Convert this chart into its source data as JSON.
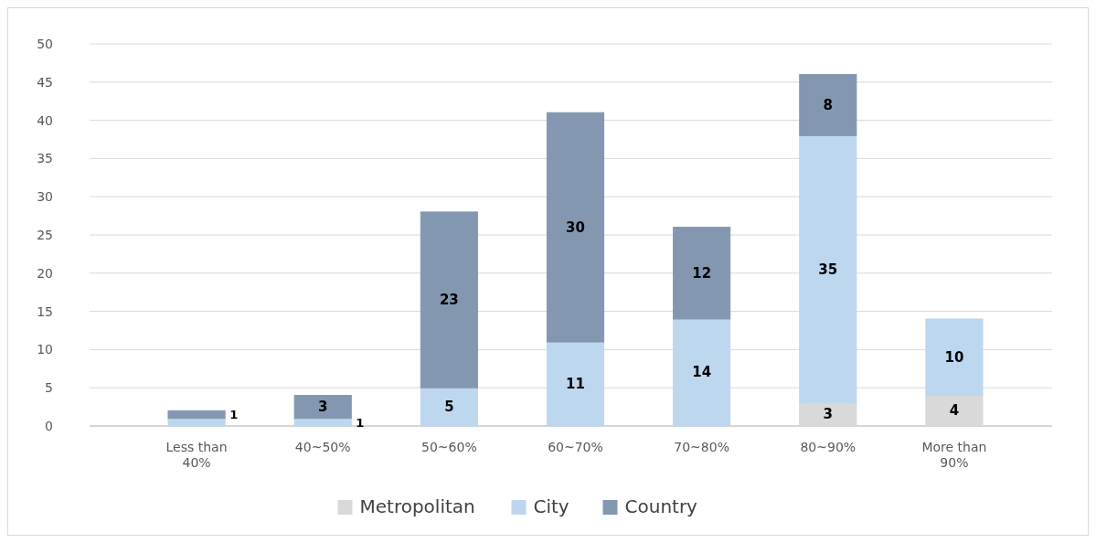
{
  "chart_data": {
    "type": "bar",
    "stacked": true,
    "categories": [
      "Less than 40%",
      "40~50%",
      "50~60%",
      "60~70%",
      "70~80%",
      "80~90%",
      "More than 90%"
    ],
    "series": [
      {
        "name": "Metropolitan",
        "color": "#d9d9d9",
        "values": [
          0,
          0,
          0,
          0,
          0,
          3,
          4
        ],
        "value_labels": [
          null,
          null,
          null,
          null,
          null,
          "3",
          "4"
        ]
      },
      {
        "name": "City",
        "color": "#bdd7ee",
        "values": [
          1,
          1,
          5,
          11,
          14,
          35,
          10
        ],
        "value_labels": [
          null,
          "1",
          "5",
          "11",
          "14",
          "35",
          "10"
        ]
      },
      {
        "name": "Country",
        "color": "#8497b0",
        "values": [
          1,
          3,
          23,
          30,
          12,
          8,
          0
        ],
        "value_labels": [
          "1",
          "3",
          "23",
          "30",
          "12",
          "8",
          null
        ]
      }
    ],
    "ylim": [
      0,
      50
    ],
    "yticks": [
      0,
      5,
      10,
      15,
      20,
      25,
      30,
      35,
      40,
      45,
      50
    ],
    "grid": "y",
    "legend": "bottom"
  }
}
